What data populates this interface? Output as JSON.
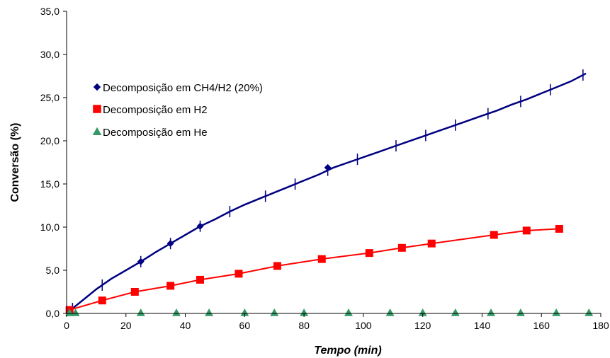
{
  "chart_data": {
    "type": "line",
    "xlabel": "Tempo (min)",
    "ylabel": "Conversão (%)",
    "xlim": [
      0,
      180
    ],
    "ylim": [
      0,
      35
    ],
    "xticks": [
      "0",
      "20",
      "40",
      "60",
      "80",
      "100",
      "120",
      "140",
      "160",
      "180"
    ],
    "yticks": [
      "0,0",
      "5,0",
      "10,0",
      "15,0",
      "20,0",
      "25,0",
      "30,0",
      "35,0"
    ],
    "grid": false,
    "legend_position": "upper-left",
    "series": [
      {
        "name": "Decomposição em CH4/H2 (20%)",
        "color": "#000080",
        "marker": "diamond",
        "x": [
          1,
          25,
          35,
          45,
          88
        ],
        "y": [
          0.3,
          6.0,
          8.1,
          10.1,
          16.9
        ],
        "curve_x": [
          1,
          5,
          10,
          15,
          20,
          25,
          30,
          35,
          40,
          45,
          50,
          55,
          60,
          65,
          70,
          75,
          80,
          85,
          90,
          95,
          100,
          105,
          110,
          115,
          120,
          125,
          130,
          135,
          140,
          145,
          150,
          155,
          160,
          165,
          170,
          175
        ],
        "curve_y": [
          0.3,
          1.4,
          2.8,
          4.0,
          5.0,
          6.0,
          7.1,
          8.1,
          9.1,
          10.1,
          10.9,
          11.8,
          12.6,
          13.3,
          14.0,
          14.7,
          15.4,
          16.1,
          16.9,
          17.5,
          18.1,
          18.7,
          19.3,
          19.9,
          20.5,
          21.1,
          21.7,
          22.3,
          22.9,
          23.5,
          24.2,
          24.8,
          25.5,
          26.2,
          26.9,
          27.8
        ],
        "error_bar_x": [
          2,
          12,
          25,
          35,
          45,
          55,
          67,
          77,
          88,
          98,
          111,
          121,
          131,
          142,
          153,
          163,
          174
        ]
      },
      {
        "name": "Decomposição em H2",
        "color": "#ff0000",
        "marker": "square",
        "x": [
          1,
          12,
          23,
          35,
          45,
          58,
          71,
          86,
          102,
          113,
          123,
          144,
          155,
          166
        ],
        "y": [
          0.4,
          1.5,
          2.5,
          3.2,
          3.9,
          4.6,
          5.5,
          6.3,
          7.0,
          7.6,
          8.1,
          9.1,
          9.6,
          9.8
        ]
      },
      {
        "name": "Decomposição em He",
        "color": "#339966",
        "marker": "triangle",
        "x": [
          1,
          3,
          25,
          37,
          48,
          60,
          70,
          80,
          95,
          109,
          120,
          131,
          143,
          153,
          165,
          176
        ],
        "y": [
          0,
          0,
          0,
          0,
          0,
          0,
          0,
          0,
          0,
          0,
          0,
          0,
          0,
          0,
          0,
          0
        ]
      }
    ]
  }
}
